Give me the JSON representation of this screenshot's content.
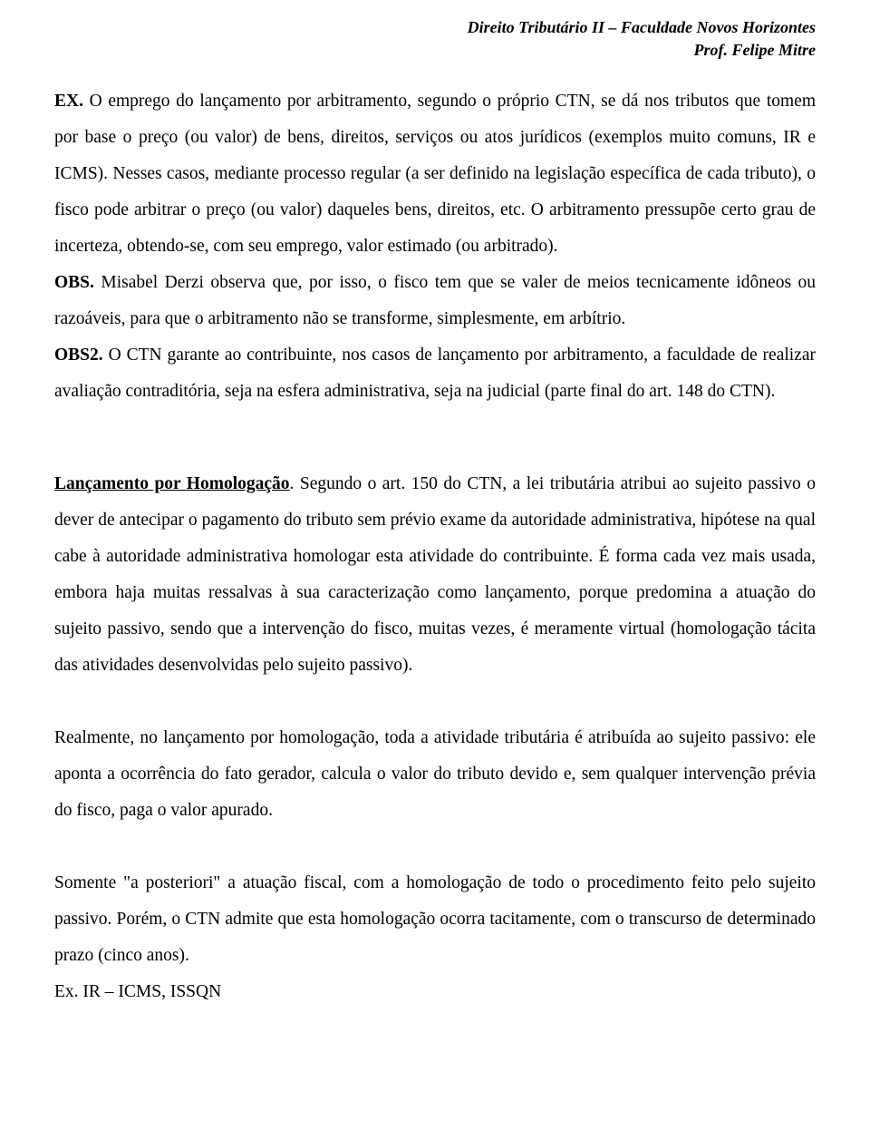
{
  "header": {
    "line1": "Direito Tributário II – Faculdade Novos Horizontes",
    "line2": "Prof. Felipe Mitre"
  },
  "p1": {
    "ex_label": "EX.",
    "text": " O emprego do lançamento por arbitramento, segundo o próprio CTN, se dá nos tributos que tomem por base o preço (ou valor) de bens, direitos, serviços ou atos jurídicos (exemplos muito comuns, IR e ICMS). Nesses casos, mediante processo regular (a ser definido na legislação específica de cada tributo), o fisco pode arbitrar o preço (ou valor) daqueles bens, direitos, etc. O arbitramento pressupõe certo grau de incerteza, obtendo-se, com seu emprego, valor estimado (ou arbitrado)."
  },
  "p2": {
    "obs_label": "OBS.",
    "text": " Misabel Derzi observa que, por isso, o fisco tem que se valer de meios tecnicamente idôneos ou razoáveis, para que o arbitramento não se transforme, simplesmente, em arbítrio."
  },
  "p3": {
    "obs2_label": "OBS2.",
    "text": " O CTN garante ao contribuinte, nos casos de lançamento por arbitramento, a faculdade de realizar avaliação contraditória, seja na esfera administrativa, seja na judicial (parte final do art. 148 do CTN)."
  },
  "p4": {
    "heading": "Lançamento por Homologação",
    "text": ". Segundo o art. 150 do CTN, a lei tributária atribui ao sujeito passivo o dever de antecipar o pagamento do tributo sem prévio exame da autoridade administrativa, hipótese na qual cabe à autoridade administrativa homologar esta atividade do contribuinte. É forma cada vez mais usada, embora haja muitas ressalvas à sua caracterização como lançamento, porque predomina a atuação do sujeito passivo, sendo que a intervenção do fisco, muitas vezes, é meramente virtual (homologação tácita das atividades desenvolvidas pelo sujeito passivo)."
  },
  "p5": {
    "text": "Realmente, no lançamento por homologação, toda a atividade tributária é atribuída ao sujeito passivo: ele aponta a ocorrência do fato gerador, calcula o valor do tributo devido e, sem qualquer intervenção prévia do fisco, paga o valor apurado."
  },
  "p6": {
    "text": "Somente \"a posteriori\" a atuação fiscal, com a homologação de todo o procedimento feito pelo sujeito passivo. Porém, o CTN admite que esta homologação ocorra tacitamente, com o transcurso de determinado prazo (cinco anos)."
  },
  "p7": {
    "text": "Ex. IR – ICMS, ISSQN"
  }
}
